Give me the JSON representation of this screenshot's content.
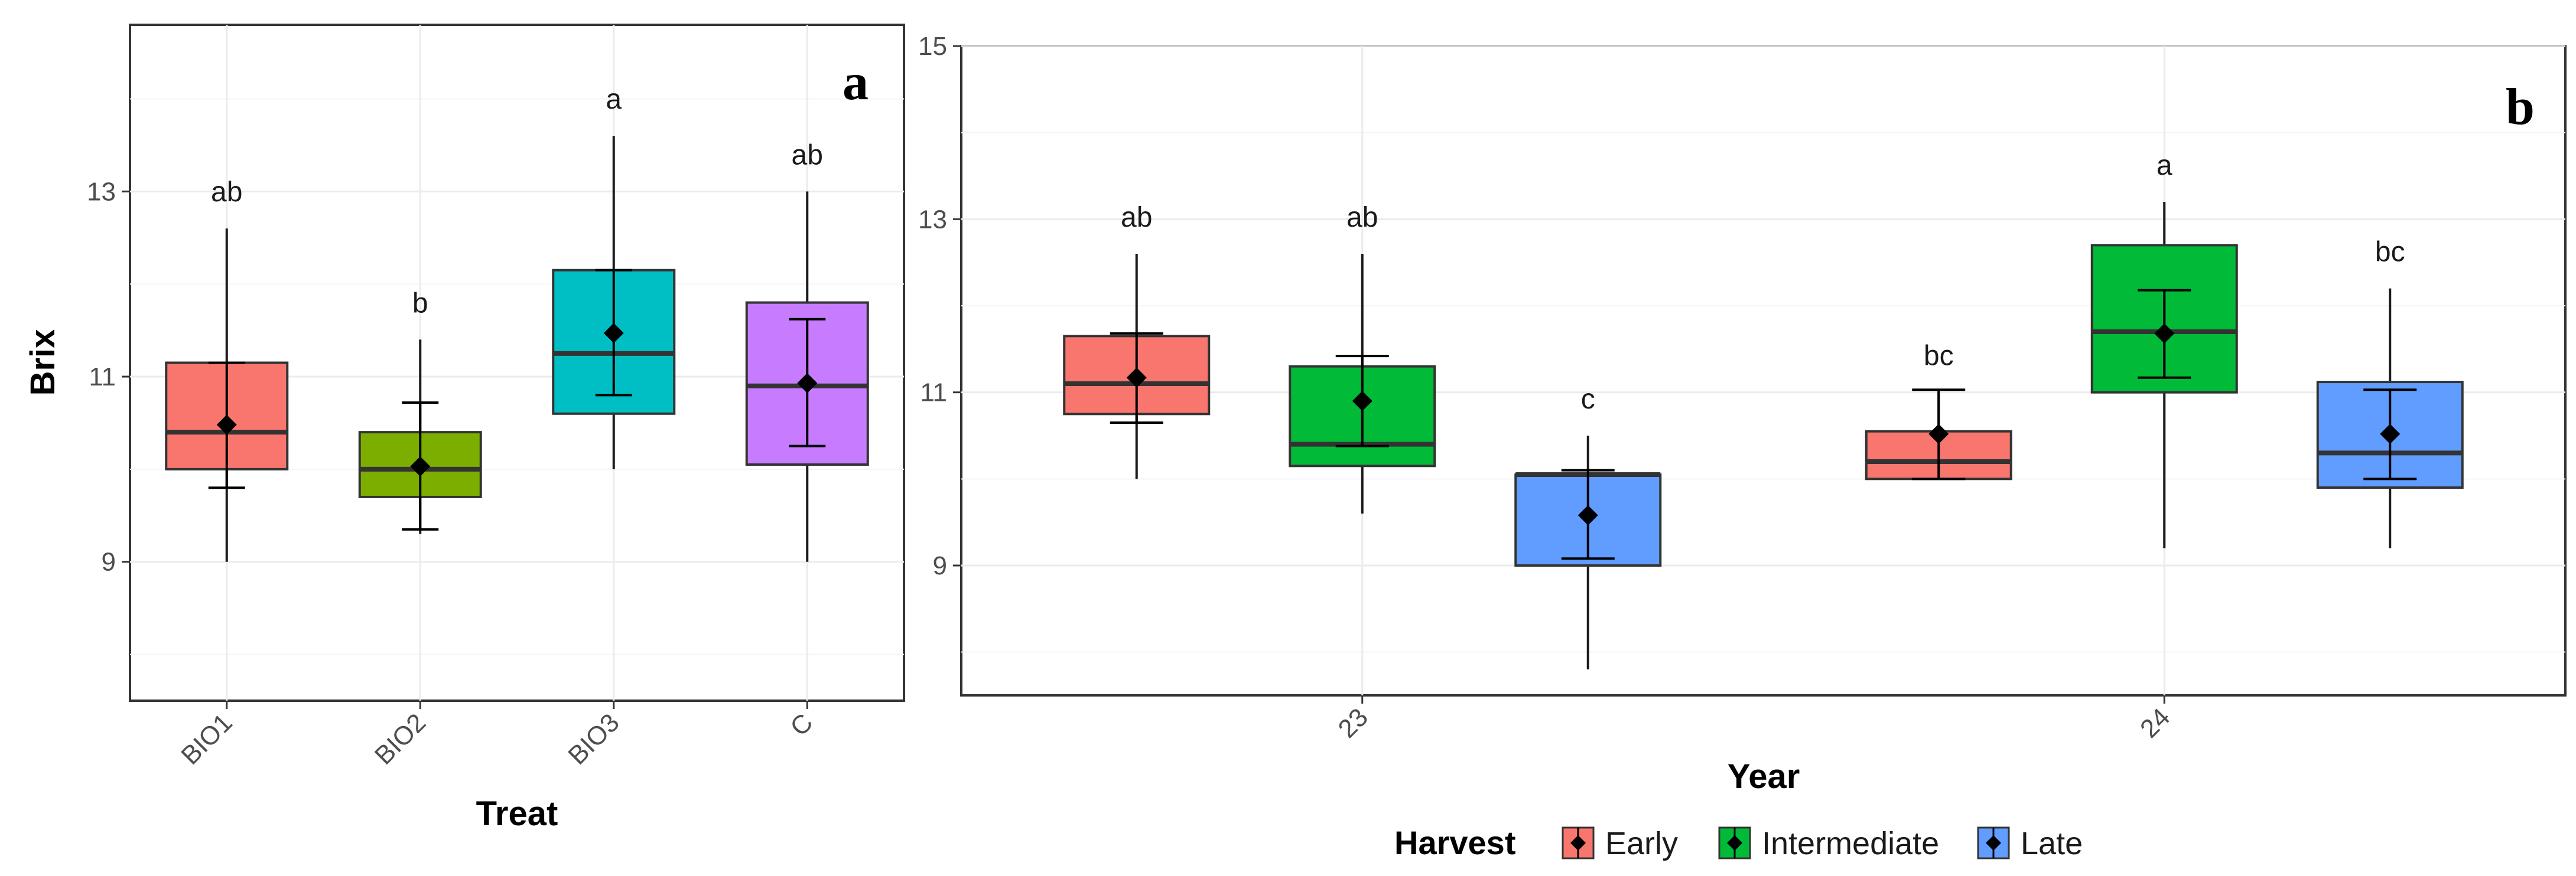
{
  "chart_data": [
    {
      "type": "box",
      "panel_label": "a",
      "xlabel": "Treat",
      "ylabel": "Brix",
      "ylim": [
        7.5,
        14.8
      ],
      "yticks": [
        "9",
        "11",
        "13"
      ],
      "categories": [
        "BIO1",
        "BIO2",
        "BIO3",
        "C"
      ],
      "boxes": [
        {
          "category": "BIO1",
          "color": "#F8766D",
          "whisker_low": 9.0,
          "q1": 10.0,
          "median": 10.4,
          "q3": 11.15,
          "whisker_high": 12.6,
          "mean": 10.48,
          "err_low": 9.8,
          "err_high": 11.15,
          "letter": "ab"
        },
        {
          "category": "BIO2",
          "color": "#7CAE00",
          "whisker_low": 9.3,
          "q1": 9.7,
          "median": 10.0,
          "q3": 10.4,
          "whisker_high": 11.4,
          "mean": 10.03,
          "err_low": 9.35,
          "err_high": 10.72,
          "letter": "b"
        },
        {
          "category": "BIO3",
          "color": "#00BFC4",
          "whisker_low": 10.0,
          "q1": 10.6,
          "median": 11.25,
          "q3": 12.15,
          "whisker_high": 13.6,
          "mean": 11.47,
          "err_low": 10.8,
          "err_high": 12.15,
          "letter": "a"
        },
        {
          "category": "C",
          "color": "#C77CFF",
          "whisker_low": 9.0,
          "q1": 10.05,
          "median": 10.9,
          "q3": 11.8,
          "whisker_high": 13.0,
          "mean": 10.93,
          "err_low": 10.25,
          "err_high": 11.62,
          "letter": "ab"
        }
      ]
    },
    {
      "type": "box",
      "panel_label": "b",
      "xlabel": "Year",
      "ylabel": "",
      "ylim": [
        7.5,
        15.0
      ],
      "yticks": [
        "9",
        "11",
        "13",
        "15"
      ],
      "categories": [
        "23",
        "24"
      ],
      "legend": {
        "title": "Harvest",
        "entries": [
          {
            "label": "Early",
            "color": "#F8766D"
          },
          {
            "label": "Intermediate",
            "color": "#00BA38"
          },
          {
            "label": "Late",
            "color": "#619CFF"
          }
        ]
      },
      "boxes": [
        {
          "category": "23",
          "group": "Early",
          "color": "#F8766D",
          "whisker_low": 10.0,
          "q1": 10.75,
          "median": 11.1,
          "q3": 11.65,
          "whisker_high": 12.6,
          "mean": 11.17,
          "err_low": 10.65,
          "err_high": 11.68,
          "letter": "ab"
        },
        {
          "category": "23",
          "group": "Intermediate",
          "color": "#00BA38",
          "whisker_low": 9.6,
          "q1": 10.15,
          "median": 10.4,
          "q3": 11.3,
          "whisker_high": 12.6,
          "mean": 10.9,
          "err_low": 10.38,
          "err_high": 11.42,
          "letter": "ab"
        },
        {
          "category": "23",
          "group": "Late",
          "color": "#619CFF",
          "whisker_low": 7.8,
          "q1": 9.0,
          "median": 10.05,
          "q3": 10.05,
          "whisker_high": 10.5,
          "mean": 9.58,
          "err_low": 9.08,
          "err_high": 10.1,
          "letter": "c"
        },
        {
          "category": "24",
          "group": "Early",
          "color": "#F8766D",
          "whisker_low": 10.0,
          "q1": 10.0,
          "median": 10.2,
          "q3": 10.55,
          "whisker_high": 11.0,
          "mean": 10.52,
          "err_low": 10.0,
          "err_high": 11.03,
          "letter": "bc"
        },
        {
          "category": "24",
          "group": "Intermediate",
          "color": "#00BA38",
          "whisker_low": 9.2,
          "q1": 11.0,
          "median": 11.7,
          "q3": 12.7,
          "whisker_high": 13.2,
          "mean": 11.68,
          "err_low": 11.17,
          "err_high": 12.18,
          "letter": "a"
        },
        {
          "category": "24",
          "group": "Late",
          "color": "#619CFF",
          "whisker_low": 9.2,
          "q1": 9.9,
          "median": 10.3,
          "q3": 11.12,
          "whisker_high": 12.2,
          "mean": 10.52,
          "err_low": 10.0,
          "err_high": 11.03,
          "letter": "bc"
        }
      ]
    }
  ]
}
